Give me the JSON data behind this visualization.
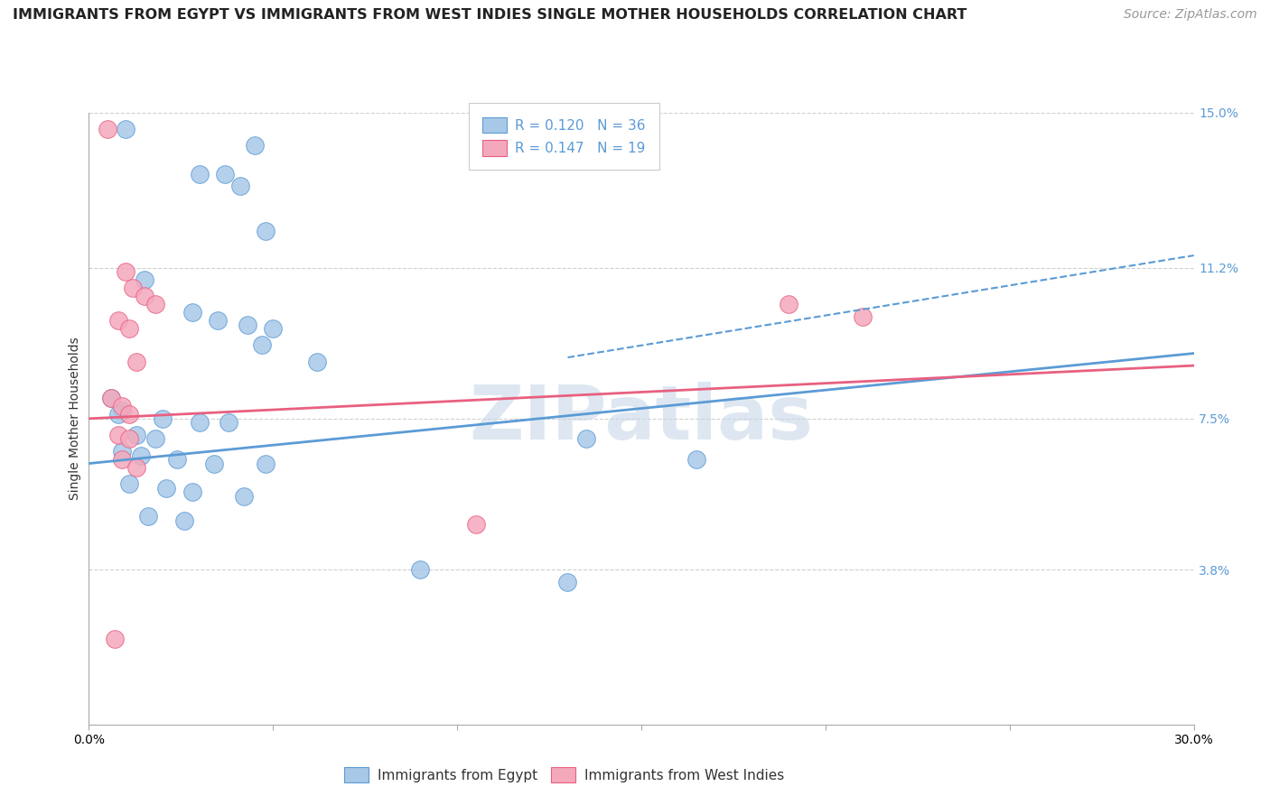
{
  "title": "IMMIGRANTS FROM EGYPT VS IMMIGRANTS FROM WEST INDIES SINGLE MOTHER HOUSEHOLDS CORRELATION CHART",
  "source": "Source: ZipAtlas.com",
  "ylabel": "Single Mother Households",
  "watermark": "ZIPatlas",
  "xlim": [
    0.0,
    30.0
  ],
  "ylim": [
    0.0,
    15.0
  ],
  "yticks": [
    3.8,
    7.5,
    11.2,
    15.0
  ],
  "xticks": [
    0.0,
    5.0,
    10.0,
    15.0,
    20.0,
    25.0,
    30.0
  ],
  "xtick_labels": [
    "0.0%",
    "",
    "",
    "",
    "",
    "",
    "30.0%"
  ],
  "ytick_labels": [
    "3.8%",
    "7.5%",
    "11.2%",
    "15.0%"
  ],
  "legend_items": [
    {
      "label": "R = 0.120   N = 36",
      "color": "#a8c4e0"
    },
    {
      "label": "R = 0.147   N = 19",
      "color": "#f4a0b0"
    }
  ],
  "legend_bottom_items": [
    {
      "label": "Immigrants from Egypt",
      "color": "#a8c4e0"
    },
    {
      "label": "Immigrants from West Indies",
      "color": "#f4a0b0"
    }
  ],
  "blue_dots": [
    [
      1.0,
      14.6
    ],
    [
      3.0,
      13.5
    ],
    [
      3.7,
      13.5
    ],
    [
      4.5,
      14.2
    ],
    [
      4.1,
      13.2
    ],
    [
      4.8,
      12.1
    ],
    [
      1.5,
      10.9
    ],
    [
      2.8,
      10.1
    ],
    [
      3.5,
      9.9
    ],
    [
      4.3,
      9.8
    ],
    [
      5.0,
      9.7
    ],
    [
      4.7,
      9.3
    ],
    [
      6.2,
      8.9
    ],
    [
      0.6,
      8.0
    ],
    [
      0.9,
      7.7
    ],
    [
      0.8,
      7.6
    ],
    [
      2.0,
      7.5
    ],
    [
      3.0,
      7.4
    ],
    [
      3.8,
      7.4
    ],
    [
      1.3,
      7.1
    ],
    [
      1.8,
      7.0
    ],
    [
      0.9,
      6.7
    ],
    [
      1.4,
      6.6
    ],
    [
      2.4,
      6.5
    ],
    [
      3.4,
      6.4
    ],
    [
      4.8,
      6.4
    ],
    [
      1.1,
      5.9
    ],
    [
      2.1,
      5.8
    ],
    [
      2.8,
      5.7
    ],
    [
      4.2,
      5.6
    ],
    [
      1.6,
      5.1
    ],
    [
      2.6,
      5.0
    ],
    [
      13.5,
      7.0
    ],
    [
      16.5,
      6.5
    ],
    [
      9.0,
      3.8
    ],
    [
      13.0,
      3.5
    ]
  ],
  "pink_dots": [
    [
      0.5,
      14.6
    ],
    [
      1.0,
      11.1
    ],
    [
      1.2,
      10.7
    ],
    [
      1.5,
      10.5
    ],
    [
      1.8,
      10.3
    ],
    [
      0.8,
      9.9
    ],
    [
      1.1,
      9.7
    ],
    [
      1.3,
      8.9
    ],
    [
      0.6,
      8.0
    ],
    [
      0.9,
      7.8
    ],
    [
      1.1,
      7.6
    ],
    [
      0.8,
      7.1
    ],
    [
      1.1,
      7.0
    ],
    [
      0.9,
      6.5
    ],
    [
      1.3,
      6.3
    ],
    [
      19.0,
      10.3
    ],
    [
      21.0,
      10.0
    ],
    [
      10.5,
      4.9
    ],
    [
      0.7,
      2.1
    ]
  ],
  "blue_line": [
    0.0,
    30.0,
    6.4,
    9.1
  ],
  "pink_line": [
    0.0,
    30.0,
    7.5,
    8.8
  ],
  "dash_line": [
    13.0,
    30.0,
    9.0,
    11.5
  ],
  "blue_color": "#5b9bd5",
  "pink_color": "#e86080",
  "blue_dot_color": "#a8c8e8",
  "pink_dot_color": "#f4a8bc",
  "background_color": "#ffffff",
  "grid_color": "#d0d0d0",
  "title_fontsize": 11.5,
  "source_fontsize": 10,
  "axis_label_fontsize": 10,
  "tick_fontsize": 10,
  "watermark_color": "#c8d8e8",
  "watermark_fontsize": 60
}
